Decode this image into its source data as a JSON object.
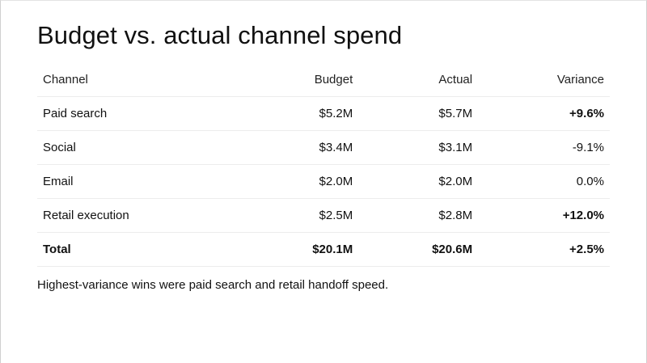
{
  "title": "Budget vs. actual channel spend",
  "table": {
    "headers": {
      "channel": "Channel",
      "budget": "Budget",
      "actual": "Actual",
      "variance": "Variance"
    },
    "rows": [
      {
        "channel": "Paid search",
        "budget": "$5.2M",
        "actual": "$5.7M",
        "variance": "+9.6%",
        "variance_bold": true
      },
      {
        "channel": "Social",
        "budget": "$3.4M",
        "actual": "$3.1M",
        "variance": "-9.1%",
        "variance_bold": false
      },
      {
        "channel": "Email",
        "budget": "$2.0M",
        "actual": "$2.0M",
        "variance": "0.0%",
        "variance_bold": false
      },
      {
        "channel": "Retail execution",
        "budget": "$2.5M",
        "actual": "$2.8M",
        "variance": "+12.0%",
        "variance_bold": true
      }
    ],
    "total": {
      "channel": "Total",
      "budget": "$20.1M",
      "actual": "$20.6M",
      "variance": "+2.5%"
    }
  },
  "note": "Highest-variance wins were paid search and retail handoff speed."
}
